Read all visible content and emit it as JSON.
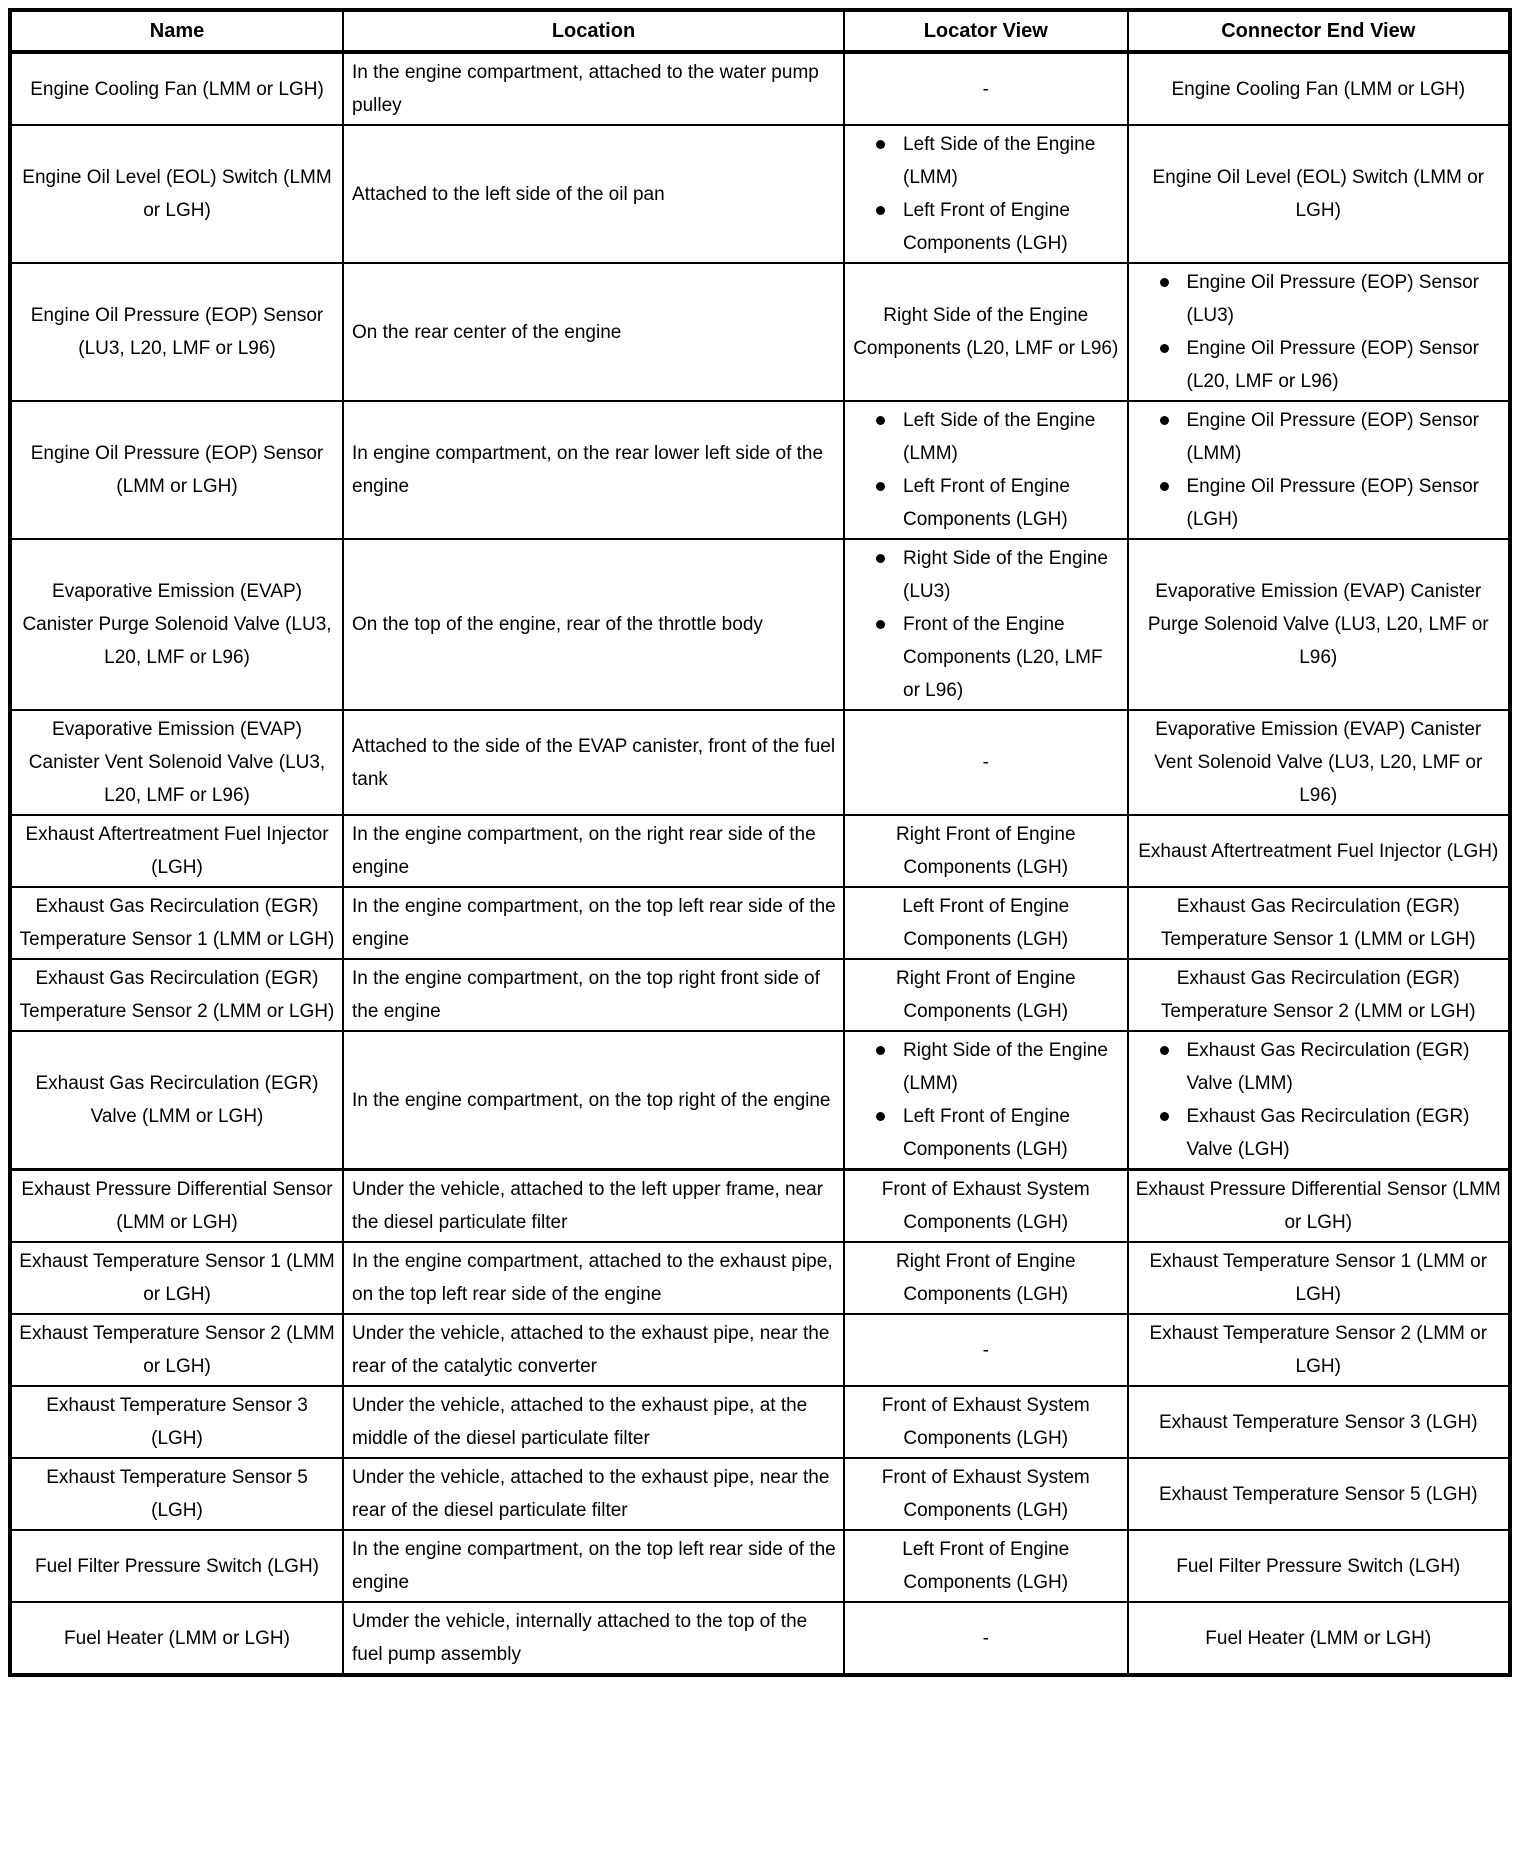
{
  "table": {
    "headers": [
      "Name",
      "Location",
      "Locator View",
      "Connector End View"
    ],
    "rows": [
      {
        "name": "Engine Cooling Fan (LMM or LGH)",
        "location": "In the engine compartment, attached to the water pump pulley",
        "locator_view": "-",
        "connector_end_view": "Engine Cooling Fan (LMM or LGH)"
      },
      {
        "name": "Engine Oil Level (EOL) Switch (LMM or LGH)",
        "location": "Attached to the left side of the oil pan",
        "locator_view": [
          "Left Side of the Engine (LMM)",
          "Left Front of Engine Components (LGH)"
        ],
        "connector_end_view": "Engine Oil Level (EOL) Switch (LMM or LGH)"
      },
      {
        "name": "Engine Oil Pressure (EOP) Sensor (LU3, L20, LMF or L96)",
        "location": "On the rear center of the engine",
        "locator_view": "Right Side of the Engine Components (L20, LMF or L96)",
        "connector_end_view": [
          "Engine Oil Pressure (EOP) Sensor (LU3)",
          "Engine Oil Pressure (EOP) Sensor (L20, LMF or L96)"
        ]
      },
      {
        "name": "Engine Oil Pressure (EOP) Sensor (LMM or LGH)",
        "location": "In engine compartment, on the rear lower left side of the engine",
        "locator_view": [
          "Left Side of the Engine (LMM)",
          "Left Front of Engine Components (LGH)"
        ],
        "connector_end_view": [
          "Engine Oil Pressure (EOP) Sensor (LMM)",
          "Engine Oil Pressure (EOP) Sensor (LGH)"
        ]
      },
      {
        "name": "Evaporative Emission (EVAP) Canister Purge Solenoid Valve (LU3, L20, LMF or L96)",
        "location": "On the top of the engine, rear of the throttle body",
        "locator_view": [
          "Right Side of the Engine (LU3)",
          "Front of the Engine Components (L20, LMF or L96)"
        ],
        "connector_end_view": "Evaporative Emission (EVAP) Canister Purge Solenoid Valve (LU3, L20, LMF or L96)"
      },
      {
        "name": "Evaporative Emission (EVAP) Canister Vent Solenoid Valve (LU3, L20, LMF or L96)",
        "location": "Attached to the side of the EVAP canister, front of the fuel tank",
        "locator_view": "-",
        "connector_end_view": "Evaporative Emission (EVAP) Canister Vent Solenoid Valve (LU3, L20, LMF or L96)"
      },
      {
        "name": "Exhaust Aftertreatment Fuel Injector (LGH)",
        "location": "In the engine compartment, on the right rear side of the engine",
        "locator_view": "Right Front of Engine Components (LGH)",
        "connector_end_view": "Exhaust Aftertreatment Fuel Injector (LGH)"
      },
      {
        "name": "Exhaust Gas Recirculation (EGR) Temperature Sensor 1 (LMM or LGH)",
        "location": "In the engine compartment, on the top left rear side of the engine",
        "locator_view": "Left Front of Engine Components (LGH)",
        "connector_end_view": "Exhaust Gas Recirculation (EGR) Temperature Sensor 1 (LMM or LGH)"
      },
      {
        "name": "Exhaust Gas Recirculation (EGR) Temperature Sensor 2 (LMM or LGH)",
        "location": "In the engine compartment, on the top right front side of the engine",
        "locator_view": "Right Front of Engine Components (LGH)",
        "connector_end_view": "Exhaust Gas Recirculation (EGR) Temperature Sensor 2 (LMM or LGH)"
      },
      {
        "name": "Exhaust Gas Recirculation (EGR) Valve (LMM or LGH)",
        "location": "In the engine compartment, on the top right of the engine",
        "locator_view": [
          "Right Side of the Engine (LMM)",
          "Left Front of Engine Components (LGH)"
        ],
        "connector_end_view": [
          "Exhaust Gas Recirculation (EGR) Valve (LMM)",
          "Exhaust Gas Recirculation (EGR) Valve (LGH)"
        ]
      },
      {
        "name": "Exhaust Pressure Differential Sensor (LMM or LGH)",
        "location": "Under the vehicle, attached to the left upper frame, near the diesel particulate filter",
        "locator_view": "Front of Exhaust System Components (LGH)",
        "connector_end_view": "Exhaust Pressure Differential Sensor (LMM or LGH)"
      },
      {
        "name": "Exhaust Temperature Sensor 1 (LMM or LGH)",
        "location": "In the engine compartment, attached to the exhaust pipe, on the top left rear side of the engine",
        "locator_view": "Right Front of Engine Components (LGH)",
        "connector_end_view": "Exhaust Temperature Sensor 1 (LMM or LGH)"
      },
      {
        "name": "Exhaust Temperature Sensor 2 (LMM or LGH)",
        "location": "Under the vehicle, attached to the exhaust pipe, near the rear of the catalytic converter",
        "locator_view": "-",
        "connector_end_view": "Exhaust Temperature Sensor 2 (LMM or LGH)"
      },
      {
        "name": "Exhaust Temperature Sensor 3 (LGH)",
        "location": "Under the vehicle, attached to the exhaust pipe, at the middle of the diesel particulate filter",
        "locator_view": "Front of Exhaust System Components (LGH)",
        "connector_end_view": "Exhaust Temperature Sensor 3 (LGH)"
      },
      {
        "name": "Exhaust Temperature Sensor 5 (LGH)",
        "location": "Under the vehicle, attached to the exhaust pipe, near the rear of the diesel particulate filter",
        "locator_view": "Front of Exhaust System Components (LGH)",
        "connector_end_view": "Exhaust Temperature Sensor 5 (LGH)"
      },
      {
        "name": "Fuel Filter Pressure Switch (LGH)",
        "location": "In the engine compartment, on the top left rear side of the engine",
        "locator_view": "Left Front of Engine Components (LGH)",
        "connector_end_view": "Fuel Filter Pressure Switch (LGH)"
      },
      {
        "name": "Fuel Heater (LMM or LGH)",
        "location": "Umder the vehicle, internally attached to the top of the fuel pump assembly",
        "locator_view": "-",
        "connector_end_view": "Fuel Heater (LMM or LGH)"
      }
    ]
  }
}
